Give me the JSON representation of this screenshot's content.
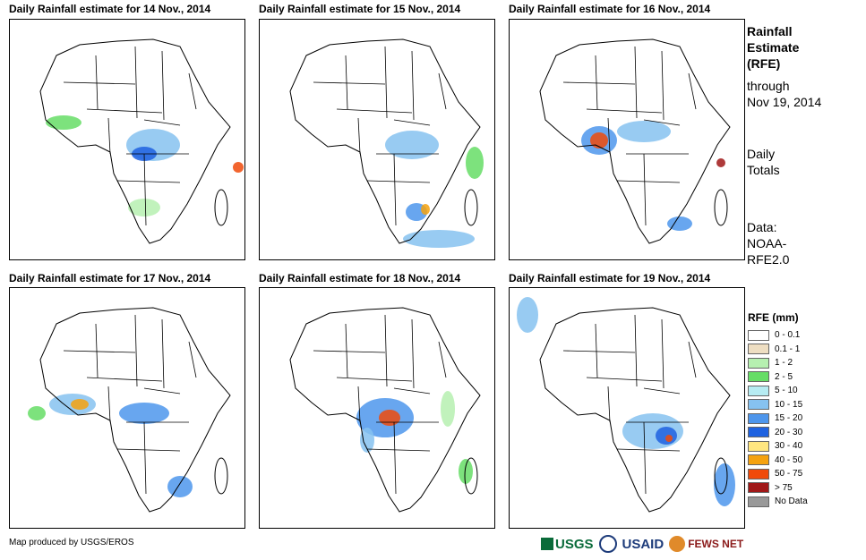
{
  "panels": [
    {
      "title": "Daily Rainfall estimate for 14 Nov., 2014"
    },
    {
      "title": "Daily Rainfall estimate for 15 Nov., 2014"
    },
    {
      "title": "Daily Rainfall estimate for 16 Nov., 2014"
    },
    {
      "title": "Daily Rainfall estimate for 17 Nov., 2014"
    },
    {
      "title": "Daily Rainfall estimate for 18 Nov., 2014"
    },
    {
      "title": "Daily Rainfall estimate for 19 Nov., 2014"
    }
  ],
  "side": {
    "title_line1": "Rainfall",
    "title_line2": "Estimate",
    "title_line3": "(RFE)",
    "through_line1": "through",
    "through_line2": "Nov 19, 2014",
    "totals_line1": "Daily",
    "totals_line2": "Totals",
    "data_line1": "Data:",
    "data_line2": "NOAA-",
    "data_line3": "RFE2.0"
  },
  "legend": {
    "title": "RFE (mm)",
    "items": [
      {
        "label": "0 - 0.1",
        "color": "#ffffff"
      },
      {
        "label": "0.1 - 1",
        "color": "#eedec2"
      },
      {
        "label": "1 - 2",
        "color": "#b6f0b0"
      },
      {
        "label": "2 - 5",
        "color": "#66dd66"
      },
      {
        "label": "5 - 10",
        "color": "#b6ecf2"
      },
      {
        "label": "10 - 15",
        "color": "#86c2f0"
      },
      {
        "label": "15 - 20",
        "color": "#4e96ec"
      },
      {
        "label": "20 - 30",
        "color": "#1f62e0"
      },
      {
        "label": "30 - 40",
        "color": "#ffe680"
      },
      {
        "label": "40 - 50",
        "color": "#f5a20f"
      },
      {
        "label": "50 - 75",
        "color": "#f04a0a"
      },
      {
        "label": "> 75",
        "color": "#a01818"
      },
      {
        "label": "No Data",
        "color": "#999999"
      }
    ]
  },
  "footer": {
    "credit": "Map produced by USGS/EROS",
    "logo_usgs": "USGS",
    "logo_usaid": "USAID",
    "logo_fews": "FEWS NET"
  }
}
